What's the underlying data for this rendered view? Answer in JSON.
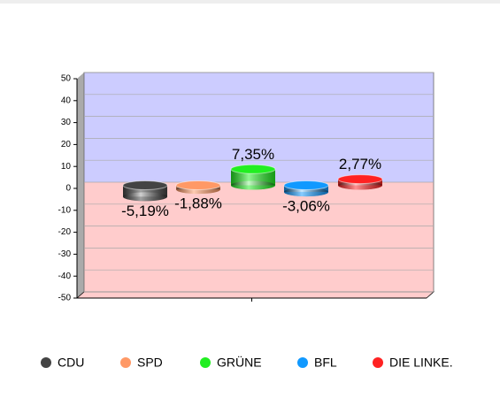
{
  "chart_data": {
    "type": "bar",
    "categories": [
      "CDU",
      "SPD",
      "GRÜNE",
      "BFL",
      "DIE LINKE."
    ],
    "values": [
      -5.19,
      -1.88,
      7.35,
      -3.06,
      2.77
    ],
    "value_labels": [
      "-5,19%",
      "-1,88%",
      "7,35%",
      "-3,06%",
      "2,77%"
    ],
    "colors": [
      "#444444",
      "#ff9966",
      "#22ee22",
      "#1199ff",
      "#ff2222"
    ],
    "ylim": [
      -50,
      50
    ],
    "yticks": [
      -50,
      -40,
      -30,
      -20,
      -10,
      0,
      10,
      20,
      30,
      40,
      50
    ],
    "grid": true
  }
}
